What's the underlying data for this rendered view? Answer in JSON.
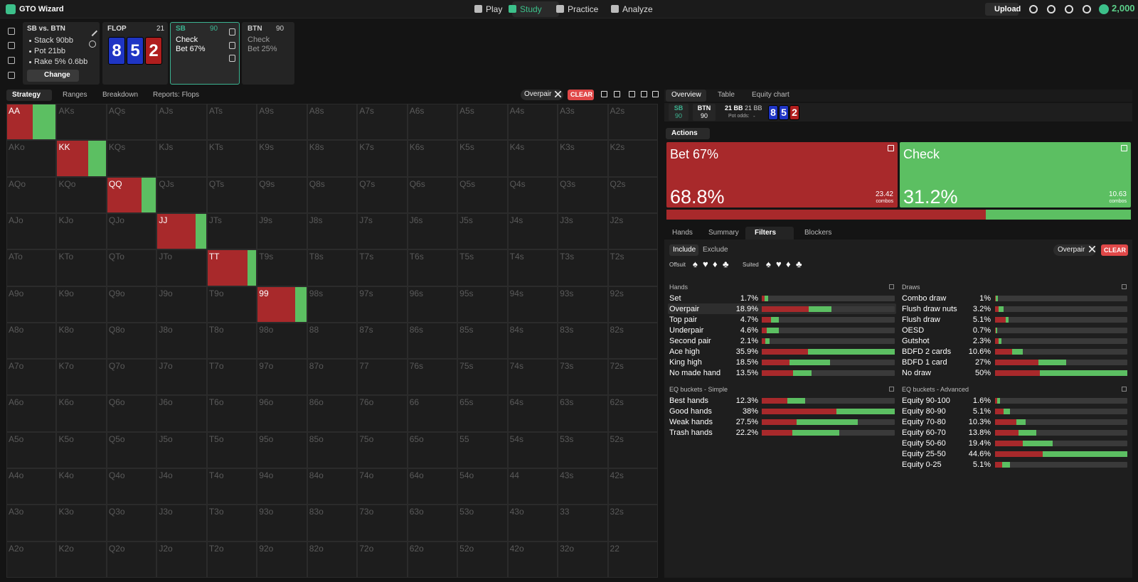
{
  "header": {
    "brand": "GTO Wizard",
    "nav": [
      "Play",
      "Study",
      "Practice",
      "Analyze"
    ],
    "upload": "Upload",
    "balance": "2,000"
  },
  "spot": {
    "title": "SB vs. BTN",
    "lines": [
      "Stack 90bb",
      "Pot 21bb",
      "Rake 5% 0.6bb"
    ],
    "button": "Change"
  },
  "board": {
    "street": "FLOP",
    "pot": "21",
    "cards": [
      {
        "rank": "8",
        "color": "#1f35c4"
      },
      {
        "rank": "5",
        "color": "#1f35c4"
      },
      {
        "rank": "2",
        "color": "#b01e1e"
      }
    ]
  },
  "nodes": [
    {
      "player": "SB",
      "stack": "90",
      "actions": [
        "Check",
        "Bet 67%"
      ],
      "active": true
    },
    {
      "player": "BTN",
      "stack": "90",
      "actions": [
        "Check",
        "Bet 25%"
      ],
      "active": false
    }
  ],
  "left_tabs": [
    "Strategy",
    "Ranges",
    "Breakdown",
    "Reports: Flops"
  ],
  "filter_chip": "Overpair",
  "clear": "CLEAR",
  "matrix": {
    "colors": {
      "bet": "#a8292b",
      "check": "#5cbf62"
    },
    "rows": [
      [
        "AA",
        "AKs",
        "AQs",
        "AJs",
        "ATs",
        "A9s",
        "A8s",
        "A7s",
        "A6s",
        "A5s",
        "A4s",
        "A3s",
        "A2s"
      ],
      [
        "AKo",
        "KK",
        "KQs",
        "KJs",
        "KTs",
        "K9s",
        "K8s",
        "K7s",
        "K6s",
        "K5s",
        "K4s",
        "K3s",
        "K2s"
      ],
      [
        "AQo",
        "KQo",
        "QQ",
        "QJs",
        "QTs",
        "Q9s",
        "Q8s",
        "Q7s",
        "Q6s",
        "Q5s",
        "Q4s",
        "Q3s",
        "Q2s"
      ],
      [
        "AJo",
        "KJo",
        "QJo",
        "JJ",
        "JTs",
        "J9s",
        "J8s",
        "J7s",
        "J6s",
        "J5s",
        "J4s",
        "J3s",
        "J2s"
      ],
      [
        "ATo",
        "KTo",
        "QTo",
        "JTo",
        "TT",
        "T9s",
        "T8s",
        "T7s",
        "T6s",
        "T5s",
        "T4s",
        "T3s",
        "T2s"
      ],
      [
        "A9o",
        "K9o",
        "Q9o",
        "J9o",
        "T9o",
        "99",
        "98s",
        "97s",
        "96s",
        "95s",
        "94s",
        "93s",
        "92s"
      ],
      [
        "A8o",
        "K8o",
        "Q8o",
        "J8o",
        "T8o",
        "98o",
        "88",
        "87s",
        "86s",
        "85s",
        "84s",
        "83s",
        "82s"
      ],
      [
        "A7o",
        "K7o",
        "Q7o",
        "J7o",
        "T7o",
        "97o",
        "87o",
        "77",
        "76s",
        "75s",
        "74s",
        "73s",
        "72s"
      ],
      [
        "A6o",
        "K6o",
        "Q6o",
        "J6o",
        "T6o",
        "96o",
        "86o",
        "76o",
        "66",
        "65s",
        "64s",
        "63s",
        "62s"
      ],
      [
        "A5o",
        "K5o",
        "Q5o",
        "J5o",
        "T5o",
        "95o",
        "85o",
        "75o",
        "65o",
        "55",
        "54s",
        "53s",
        "52s"
      ],
      [
        "A4o",
        "K4o",
        "Q4o",
        "J4o",
        "T4o",
        "94o",
        "84o",
        "74o",
        "64o",
        "54o",
        "44",
        "43s",
        "42s"
      ],
      [
        "A3o",
        "K3o",
        "Q3o",
        "J3o",
        "T3o",
        "93o",
        "83o",
        "73o",
        "63o",
        "53o",
        "43o",
        "33",
        "32s"
      ],
      [
        "A2o",
        "K2o",
        "Q2o",
        "J2o",
        "T2o",
        "92o",
        "82o",
        "72o",
        "62o",
        "52o",
        "42o",
        "32o",
        "22"
      ]
    ],
    "pair_strategy": [
      {
        "bet": 52,
        "check": 48
      },
      {
        "bet": 64,
        "check": 36
      },
      {
        "bet": 70,
        "check": 30
      },
      {
        "bet": 78,
        "check": 22
      },
      {
        "bet": 82,
        "check": 18
      },
      {
        "bet": 77,
        "check": 23
      }
    ]
  },
  "overview": {
    "tabs": [
      "Overview",
      "Table",
      "Equity chart"
    ],
    "players": [
      {
        "name": "SB",
        "stack": "90"
      },
      {
        "name": "BTN",
        "stack": "90"
      }
    ],
    "pot": [
      "21 BB",
      "21 BB"
    ],
    "pot_odds_label": "Pot odds:",
    "pot_odds": "-",
    "actions_menu": "Actions",
    "actions": [
      {
        "name": "Bet 67%",
        "value": 68.8,
        "value_label": "68.8%",
        "combos": 23.42,
        "unit": "combos",
        "color": "#a8292b"
      },
      {
        "name": "Check",
        "value": 31.2,
        "value_label": "31.2%",
        "combos": 10.63,
        "unit": "combos",
        "color": "#5cbf62"
      }
    ]
  },
  "detail": {
    "tabs": [
      "Hands",
      "Summary",
      "Filters",
      "Blockers"
    ],
    "mode": [
      "Include",
      "Exclude"
    ],
    "chip": "Overpair",
    "clear": "CLEAR",
    "offsuit": "Offsuit",
    "suited": "Suited",
    "suits": [
      "♠",
      "♥",
      "♦",
      "♣"
    ],
    "groups": [
      {
        "title": "Hands",
        "rows": [
          {
            "name": "Set",
            "value": 1.7,
            "label": "1.7%",
            "bet": 40
          },
          {
            "name": "Overpair",
            "value": 18.9,
            "label": "18.9%",
            "bet": 67,
            "selected": true
          },
          {
            "name": "Top pair",
            "value": 4.7,
            "label": "4.7%",
            "bet": 54
          },
          {
            "name": "Underpair",
            "value": 4.6,
            "label": "4.6%",
            "bet": 30
          },
          {
            "name": "Second pair",
            "value": 2.1,
            "label": "2.1%",
            "bet": 50
          },
          {
            "name": "Ace high",
            "value": 35.9,
            "label": "35.9%",
            "bet": 35
          },
          {
            "name": "King high",
            "value": 18.5,
            "label": "18.5%",
            "bet": 40
          },
          {
            "name": "No made hand",
            "value": 13.5,
            "label": "13.5%",
            "bet": 62
          }
        ]
      },
      {
        "title": "Draws",
        "rows": [
          {
            "name": "Combo draw",
            "value": 1,
            "label": "1%",
            "bet": 30
          },
          {
            "name": "Flush draw nuts",
            "value": 3.2,
            "label": "3.2%",
            "bet": 45
          },
          {
            "name": "Flush draw",
            "value": 5.1,
            "label": "5.1%",
            "bet": 78
          },
          {
            "name": "OESD",
            "value": 0.7,
            "label": "0.7%",
            "bet": 30
          },
          {
            "name": "Gutshot",
            "value": 2.3,
            "label": "2.3%",
            "bet": 60
          },
          {
            "name": "BDFD 2 cards",
            "value": 10.6,
            "label": "10.6%",
            "bet": 60
          },
          {
            "name": "BDFD 1 card",
            "value": 27,
            "label": "27%",
            "bet": 61
          },
          {
            "name": "No draw",
            "value": 50,
            "label": "50%",
            "bet": 34
          }
        ]
      },
      {
        "title": "EQ buckets - Simple",
        "rows": [
          {
            "name": "Best hands",
            "value": 12.3,
            "label": "12.3%",
            "bet": 60
          },
          {
            "name": "Good hands",
            "value": 38,
            "label": "38%",
            "bet": 56
          },
          {
            "name": "Weak hands",
            "value": 27.5,
            "label": "27.5%",
            "bet": 36
          },
          {
            "name": "Trash hands",
            "value": 22.2,
            "label": "22.2%",
            "bet": 39
          }
        ]
      },
      {
        "title": "EQ buckets - Advanced",
        "rows": [
          {
            "name": "Equity 90-100",
            "value": 1.6,
            "label": "1.6%",
            "bet": 40
          },
          {
            "name": "Equity 80-90",
            "value": 5.1,
            "label": "5.1%",
            "bet": 55
          },
          {
            "name": "Equity 70-80",
            "value": 10.3,
            "label": "10.3%",
            "bet": 70
          },
          {
            "name": "Equity 60-70",
            "value": 13.8,
            "label": "13.8%",
            "bet": 57
          },
          {
            "name": "Equity 50-60",
            "value": 19.4,
            "label": "19.4%",
            "bet": 48
          },
          {
            "name": "Equity 25-50",
            "value": 44.6,
            "label": "44.6%",
            "bet": 36
          },
          {
            "name": "Equity 0-25",
            "value": 5.1,
            "label": "5.1%",
            "bet": 45
          }
        ]
      }
    ]
  }
}
